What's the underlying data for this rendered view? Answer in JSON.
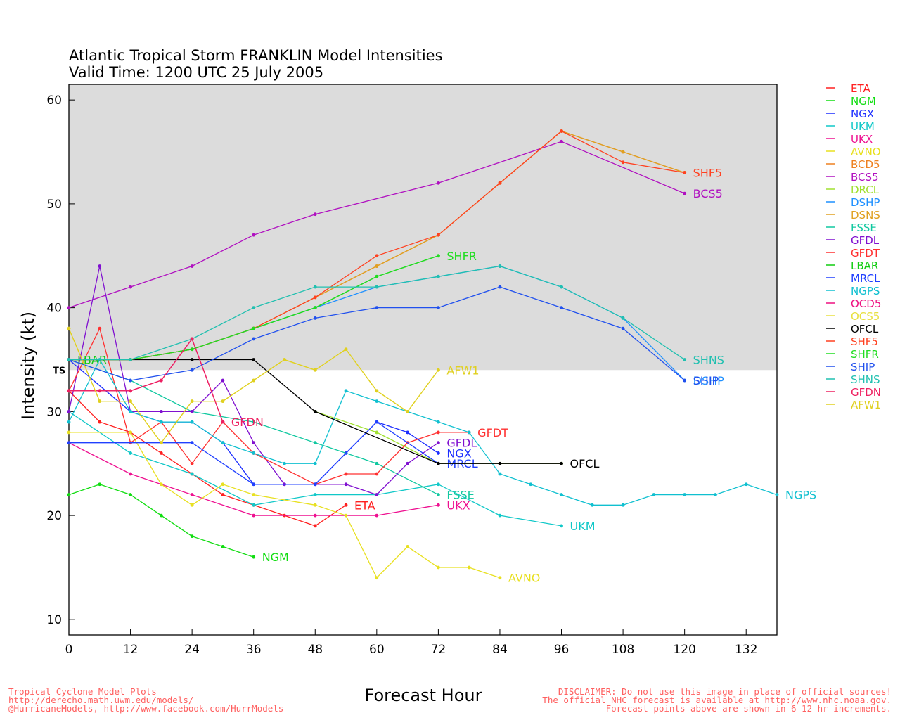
{
  "chart_data": {
    "type": "line",
    "title": "Atlantic Tropical Storm FRANKLIN Model Intensities",
    "subtitle": "Valid Time: 1200 UTC 25 July 2005",
    "xlabel": "Forecast Hour",
    "ylabel": "Intensity (kt)",
    "xlim": [
      0,
      138
    ],
    "ylim": [
      8.5,
      61.5
    ],
    "xticks": [
      0,
      12,
      24,
      36,
      48,
      60,
      72,
      84,
      96,
      108,
      120,
      132
    ],
    "yticks": [
      10,
      20,
      30,
      40,
      50,
      60
    ],
    "band": {
      "from": 34,
      "label": "TS",
      "color": "#dcdcdc"
    },
    "grid": false,
    "legend_position": "right",
    "series": [
      {
        "name": "ETA",
        "color": "#ff2020",
        "label": "ETA",
        "points": [
          [
            0,
            32
          ],
          [
            6,
            29
          ],
          [
            12,
            28
          ],
          [
            18,
            26
          ],
          [
            24,
            24
          ],
          [
            30,
            22
          ],
          [
            36,
            21
          ],
          [
            42,
            20
          ],
          [
            48,
            19
          ],
          [
            54,
            21
          ]
        ]
      },
      {
        "name": "NGM",
        "color": "#10dd10",
        "label": "NGM",
        "points": [
          [
            0,
            22
          ],
          [
            6,
            23
          ],
          [
            12,
            22
          ],
          [
            18,
            20
          ],
          [
            24,
            18
          ],
          [
            30,
            17
          ],
          [
            36,
            16
          ]
        ]
      },
      {
        "name": "NGX",
        "color": "#1c2eff",
        "label": "NGX",
        "points": [
          [
            0,
            35
          ],
          [
            12,
            30
          ],
          [
            18,
            29
          ],
          [
            24,
            29
          ],
          [
            30,
            27
          ],
          [
            36,
            23
          ],
          [
            42,
            23
          ],
          [
            48,
            23
          ],
          [
            54,
            26
          ],
          [
            60,
            29
          ],
          [
            66,
            28
          ],
          [
            72,
            26
          ]
        ]
      },
      {
        "name": "UKM",
        "color": "#10c8c8",
        "label": "UKM",
        "points": [
          [
            0,
            30
          ],
          [
            12,
            26
          ],
          [
            24,
            24
          ],
          [
            36,
            21
          ],
          [
            48,
            22
          ],
          [
            60,
            22
          ],
          [
            72,
            23
          ],
          [
            84,
            20
          ],
          [
            96,
            19
          ]
        ]
      },
      {
        "name": "UKX",
        "color": "#ee1090",
        "label": "UKX",
        "points": [
          [
            0,
            27
          ],
          [
            12,
            24
          ],
          [
            24,
            22
          ],
          [
            36,
            20
          ],
          [
            48,
            20
          ],
          [
            60,
            20
          ],
          [
            72,
            21
          ]
        ]
      },
      {
        "name": "AVNO",
        "color": "#e8e020",
        "label": "AVNO",
        "points": [
          [
            0,
            28
          ],
          [
            12,
            28
          ],
          [
            18,
            23
          ],
          [
            24,
            21
          ],
          [
            30,
            23
          ],
          [
            36,
            22
          ],
          [
            48,
            21
          ],
          [
            54,
            20
          ],
          [
            60,
            14
          ],
          [
            66,
            17
          ],
          [
            72,
            15
          ],
          [
            78,
            15
          ],
          [
            84,
            14
          ]
        ]
      },
      {
        "name": "BCD5",
        "color": "#ee8020",
        "label": "",
        "points": [
          [
            0,
            35
          ],
          [
            12,
            35
          ],
          [
            24,
            36
          ],
          [
            36,
            38
          ],
          [
            48,
            41
          ],
          [
            60,
            44
          ],
          [
            72,
            47
          ],
          [
            84,
            52
          ],
          [
            96,
            57
          ],
          [
            108,
            55
          ],
          [
            120,
            53
          ]
        ]
      },
      {
        "name": "BCS5",
        "color": "#b010c0",
        "label": "BCS5",
        "points": [
          [
            0,
            40
          ],
          [
            12,
            42
          ],
          [
            24,
            44
          ],
          [
            36,
            47
          ],
          [
            48,
            49
          ],
          [
            72,
            52
          ],
          [
            96,
            56
          ],
          [
            120,
            51
          ]
        ]
      },
      {
        "name": "DRCL",
        "color": "#a0e030",
        "label": "",
        "points": [
          [
            48,
            30
          ],
          [
            60,
            28
          ],
          [
            72,
            25
          ],
          [
            84,
            25
          ],
          [
            96,
            25
          ]
        ]
      },
      {
        "name": "DSHP",
        "color": "#1e90ff",
        "label": "DSHP",
        "points": [
          [
            0,
            35
          ],
          [
            12,
            35
          ],
          [
            24,
            36
          ],
          [
            36,
            38
          ],
          [
            48,
            40
          ],
          [
            60,
            42
          ],
          [
            72,
            43
          ],
          [
            84,
            44
          ],
          [
            96,
            42
          ],
          [
            108,
            39
          ],
          [
            120,
            33
          ]
        ]
      },
      {
        "name": "DSNS",
        "color": "#e0a020",
        "label": "",
        "points": [
          [
            0,
            35
          ],
          [
            12,
            35
          ],
          [
            24,
            36
          ],
          [
            36,
            38
          ],
          [
            48,
            41
          ],
          [
            60,
            44
          ],
          [
            72,
            47
          ],
          [
            84,
            52
          ],
          [
            96,
            57
          ],
          [
            108,
            55
          ],
          [
            120,
            53
          ]
        ]
      },
      {
        "name": "FSSE",
        "color": "#10c8a0",
        "label": "FSSE",
        "points": [
          [
            0,
            35
          ],
          [
            12,
            33
          ],
          [
            24,
            30
          ],
          [
            36,
            29
          ],
          [
            48,
            27
          ],
          [
            60,
            25
          ],
          [
            72,
            22
          ]
        ]
      },
      {
        "name": "GFDL",
        "color": "#8010d0",
        "label": "GFDL",
        "points": [
          [
            0,
            30
          ],
          [
            6,
            44
          ],
          [
            12,
            30
          ],
          [
            18,
            30
          ],
          [
            24,
            30
          ],
          [
            30,
            33
          ],
          [
            36,
            27
          ],
          [
            42,
            23
          ],
          [
            48,
            23
          ],
          [
            54,
            23
          ],
          [
            60,
            22
          ],
          [
            66,
            25
          ],
          [
            72,
            27
          ]
        ]
      },
      {
        "name": "GFDT",
        "color": "#ff3030",
        "label": "GFDT",
        "points": [
          [
            0,
            32
          ],
          [
            6,
            38
          ],
          [
            12,
            27
          ],
          [
            18,
            29
          ],
          [
            24,
            25
          ],
          [
            30,
            29
          ],
          [
            36,
            26
          ],
          [
            48,
            23
          ],
          [
            54,
            24
          ],
          [
            60,
            24
          ],
          [
            66,
            27
          ],
          [
            72,
            28
          ],
          [
            78,
            28
          ]
        ]
      },
      {
        "name": "LBAR",
        "color": "#10cc10",
        "label": "LBAR",
        "points": [
          [
            0,
            35
          ],
          [
            12,
            35
          ],
          [
            24,
            36
          ],
          [
            36,
            38
          ],
          [
            48,
            40
          ],
          [
            60,
            43
          ],
          [
            72,
            45
          ]
        ]
      },
      {
        "name": "MRCL",
        "color": "#2040ff",
        "label": "MRCL",
        "points": [
          [
            0,
            27
          ],
          [
            24,
            27
          ],
          [
            36,
            23
          ],
          [
            48,
            23
          ],
          [
            60,
            29
          ],
          [
            72,
            25
          ]
        ]
      },
      {
        "name": "NGPS",
        "color": "#10c0d0",
        "label": "NGPS",
        "points": [
          [
            0,
            29
          ],
          [
            6,
            35
          ],
          [
            12,
            30
          ],
          [
            18,
            29
          ],
          [
            24,
            29
          ],
          [
            30,
            27
          ],
          [
            36,
            26
          ],
          [
            42,
            25
          ],
          [
            48,
            25
          ],
          [
            54,
            32
          ],
          [
            60,
            31
          ],
          [
            66,
            30
          ],
          [
            72,
            29
          ],
          [
            78,
            28
          ],
          [
            84,
            24
          ],
          [
            90,
            23
          ],
          [
            96,
            22
          ],
          [
            102,
            21
          ],
          [
            108,
            21
          ],
          [
            114,
            22
          ],
          [
            120,
            22
          ],
          [
            126,
            22
          ],
          [
            132,
            23
          ],
          [
            138,
            22
          ]
        ]
      },
      {
        "name": "OCD5",
        "color": "#ee1080",
        "label": "",
        "points": [
          [
            0,
            32
          ],
          [
            6,
            32
          ],
          [
            12,
            32
          ],
          [
            18,
            33
          ],
          [
            24,
            37
          ],
          [
            30,
            29
          ]
        ]
      },
      {
        "name": "OCS5",
        "color": "#e8e040",
        "label": "",
        "points": [
          [
            0,
            38
          ],
          [
            6,
            31
          ],
          [
            12,
            31
          ],
          [
            18,
            27
          ],
          [
            24,
            31
          ],
          [
            30,
            31
          ],
          [
            36,
            33
          ],
          [
            42,
            35
          ],
          [
            48,
            34
          ],
          [
            54,
            36
          ],
          [
            60,
            32
          ],
          [
            66,
            30
          ],
          [
            72,
            34
          ]
        ]
      },
      {
        "name": "OFCL",
        "color": "#000000",
        "label": "OFCL",
        "points": [
          [
            0,
            35
          ],
          [
            12,
            35
          ],
          [
            24,
            35
          ],
          [
            36,
            35
          ],
          [
            48,
            30
          ],
          [
            72,
            25
          ],
          [
            84,
            25
          ],
          [
            96,
            25
          ]
        ]
      },
      {
        "name": "SHF5",
        "color": "#ff4020",
        "label": "SHF5",
        "points": [
          [
            0,
            35
          ],
          [
            12,
            35
          ],
          [
            24,
            36
          ],
          [
            36,
            38
          ],
          [
            48,
            41
          ],
          [
            60,
            45
          ],
          [
            72,
            47
          ],
          [
            84,
            52
          ],
          [
            96,
            57
          ],
          [
            108,
            54
          ],
          [
            120,
            53
          ]
        ]
      },
      {
        "name": "SHFR",
        "color": "#20dd20",
        "label": "SHFR",
        "points": [
          [
            0,
            35
          ],
          [
            12,
            35
          ],
          [
            24,
            36
          ],
          [
            36,
            38
          ],
          [
            48,
            40
          ],
          [
            60,
            43
          ],
          [
            72,
            45
          ]
        ]
      },
      {
        "name": "SHIP",
        "color": "#2050ee",
        "label": "SHIP",
        "points": [
          [
            0,
            35
          ],
          [
            12,
            33
          ],
          [
            24,
            34
          ],
          [
            36,
            37
          ],
          [
            48,
            39
          ],
          [
            60,
            40
          ],
          [
            72,
            40
          ],
          [
            84,
            42
          ],
          [
            96,
            40
          ],
          [
            108,
            38
          ],
          [
            120,
            33
          ]
        ]
      },
      {
        "name": "SHNS",
        "color": "#20c0b0",
        "label": "SHNS",
        "points": [
          [
            0,
            35
          ],
          [
            12,
            35
          ],
          [
            24,
            37
          ],
          [
            36,
            40
          ],
          [
            48,
            42
          ],
          [
            60,
            42
          ],
          [
            72,
            43
          ],
          [
            84,
            44
          ],
          [
            96,
            42
          ],
          [
            108,
            39
          ],
          [
            120,
            35
          ]
        ]
      },
      {
        "name": "GFDN",
        "color": "#ee2060",
        "label": "GFDN",
        "points": [
          [
            0,
            32
          ],
          [
            6,
            32
          ],
          [
            12,
            32
          ],
          [
            18,
            33
          ],
          [
            24,
            37
          ],
          [
            30,
            29
          ]
        ]
      },
      {
        "name": "AFW1",
        "color": "#e0d020",
        "label": "AFW1",
        "points": [
          [
            0,
            38
          ],
          [
            6,
            31
          ],
          [
            12,
            31
          ],
          [
            18,
            27
          ],
          [
            24,
            31
          ],
          [
            30,
            31
          ],
          [
            36,
            33
          ],
          [
            42,
            35
          ],
          [
            48,
            34
          ],
          [
            54,
            36
          ],
          [
            60,
            32
          ],
          [
            66,
            30
          ],
          [
            72,
            34
          ]
        ]
      }
    ]
  },
  "footer": {
    "left": [
      "Tropical Cyclone Model Plots",
      "http://derecho.math.uwm.edu/models/",
      "@HurricaneModels, http://www.facebook.com/HurrModels"
    ],
    "right": [
      "DISCLAIMER: Do not use this image in place of official sources!",
      "The official NHC forecast is available at http://www.nhc.noaa.gov.",
      "Forecast points above are shown in 6-12 hr increments."
    ],
    "left_color": "#ff6060",
    "right_color": "#ff6060"
  }
}
